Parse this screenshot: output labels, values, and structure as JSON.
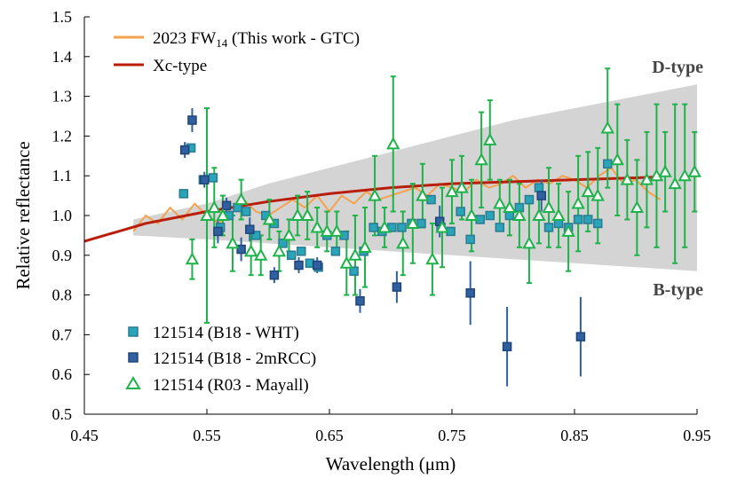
{
  "chart_data": {
    "type": "line",
    "xlabel": "Wavelength (μm)",
    "ylabel": "Relative reflectance",
    "xlim": [
      0.45,
      0.95
    ],
    "ylim": [
      0.5,
      1.5
    ],
    "xticks": [
      "0.45",
      "0.55",
      "0.65",
      "0.75",
      "0.85",
      "0.95"
    ],
    "yticks": [
      "0.5",
      "0.6",
      "0.7",
      "0.8",
      "0.9",
      "1.0",
      "1.1",
      "1.2",
      "1.3",
      "1.4",
      "1.5"
    ],
    "grid": false,
    "legend_top": [
      {
        "name": "2023 FW",
        "subscript": "14",
        "suffix": " (This work - GTC)",
        "color": "#f4a14e"
      },
      {
        "name": "Xc-type",
        "color": "#b81e0a"
      }
    ],
    "legend_bottom": [
      {
        "name": "121514 (B18 - WHT)",
        "color": "#2aa4b8"
      },
      {
        "name": "121514 (B18 - 2mRCC)",
        "color": "#3060a0"
      },
      {
        "name": "121514 (R03 - Mayall)",
        "color": "#1db34a"
      }
    ],
    "region_labels": {
      "upper": "D-type",
      "lower": "B-type"
    },
    "envelope": {
      "x": [
        0.49,
        0.55,
        0.6,
        0.65,
        0.7,
        0.75,
        0.8,
        0.85,
        0.9,
        0.95
      ],
      "upper": [
        0.99,
        1.03,
        1.08,
        1.12,
        1.16,
        1.2,
        1.24,
        1.27,
        1.3,
        1.33
      ],
      "lower": [
        0.95,
        0.94,
        0.93,
        0.92,
        0.91,
        0.9,
        0.89,
        0.88,
        0.87,
        0.86
      ],
      "color": "#d4d4d4"
    },
    "series": [
      {
        "name": "Xc-type",
        "color": "#b81e0a",
        "x": [
          0.45,
          0.5,
          0.55,
          0.6,
          0.65,
          0.7,
          0.75,
          0.8,
          0.85,
          0.9,
          0.92
        ],
        "y": [
          0.935,
          0.98,
          1.01,
          1.035,
          1.055,
          1.07,
          1.08,
          1.085,
          1.09,
          1.095,
          1.097
        ]
      },
      {
        "name": "2023 FW14 (This work - GTC)",
        "color": "#f4a14e",
        "x": [
          0.49,
          0.5,
          0.51,
          0.52,
          0.53,
          0.54,
          0.55,
          0.56,
          0.57,
          0.58,
          0.59,
          0.6,
          0.61,
          0.62,
          0.63,
          0.64,
          0.65,
          0.66,
          0.67,
          0.68,
          0.69,
          0.7,
          0.71,
          0.72,
          0.73,
          0.74,
          0.75,
          0.76,
          0.77,
          0.78,
          0.79,
          0.8,
          0.81,
          0.82,
          0.83,
          0.84,
          0.85,
          0.86,
          0.87,
          0.88,
          0.89,
          0.9,
          0.91,
          0.92
        ],
        "y": [
          0.96,
          1.0,
          0.98,
          1.02,
          0.99,
          1.03,
          1.0,
          0.98,
          1.02,
          1.04,
          1.01,
          1.0,
          1.02,
          1.04,
          1.02,
          1.05,
          1.01,
          1.05,
          1.03,
          1.06,
          1.04,
          1.05,
          1.06,
          1.07,
          1.05,
          1.08,
          1.07,
          1.06,
          1.09,
          1.07,
          1.08,
          1.1,
          1.07,
          1.09,
          1.08,
          1.1,
          1.09,
          1.07,
          1.1,
          1.12,
          1.08,
          1.09,
          1.06,
          1.04
        ]
      },
      {
        "name": "121514 (B18 - WHT)",
        "marker": "square",
        "color": "#2aa4b8",
        "x": [
          0.531,
          0.537,
          0.547,
          0.555,
          0.561,
          0.568,
          0.575,
          0.582,
          0.59,
          0.598,
          0.605,
          0.612,
          0.619,
          0.627,
          0.634,
          0.641,
          0.648,
          0.655,
          0.662,
          0.67,
          0.678,
          0.686,
          0.693,
          0.701,
          0.709,
          0.717,
          0.725,
          0.733,
          0.741,
          0.749,
          0.757,
          0.765,
          0.773,
          0.781,
          0.789,
          0.797,
          0.805,
          0.813,
          0.821,
          0.829,
          0.837,
          0.845,
          0.853,
          0.861,
          0.869,
          0.877
        ],
        "y": [
          1.055,
          1.17,
          1.09,
          1.095,
          0.97,
          1.0,
          1.02,
          1.01,
          0.95,
          1.0,
          0.98,
          0.93,
          0.9,
          0.91,
          0.88,
          0.87,
          0.95,
          0.91,
          0.95,
          0.86,
          0.91,
          0.97,
          0.96,
          0.97,
          0.97,
          0.98,
          0.98,
          1.04,
          0.97,
          0.96,
          1.01,
          0.94,
          0.99,
          1.0,
          0.97,
          1.0,
          1.02,
          1.04,
          1.07,
          0.97,
          0.98,
          0.97,
          0.99,
          0.99,
          0.98,
          1.13
        ]
      },
      {
        "name": "121514 (B18 - 2mRCC)",
        "marker": "square",
        "color": "#3060a0",
        "x": [
          0.532,
          0.538,
          0.548,
          0.559,
          0.566,
          0.578,
          0.585,
          0.605,
          0.625,
          0.64,
          0.675,
          0.705,
          0.74,
          0.765,
          0.795,
          0.823,
          0.855
        ],
        "y": [
          1.165,
          1.24,
          1.09,
          0.96,
          1.025,
          0.915,
          0.965,
          0.85,
          0.875,
          0.875,
          0.785,
          0.82,
          0.985,
          0.805,
          0.67,
          1.05,
          0.695
        ],
        "err": [
          0.02,
          0.03,
          0.02,
          0.03,
          0.02,
          0.03,
          0.03,
          0.02,
          0.02,
          0.02,
          0.03,
          0.04,
          0.04,
          0.08,
          0.1,
          0.04,
          0.1
        ]
      },
      {
        "name": "121514 (R03 - Mayall)",
        "marker": "triangle",
        "color": "#1db34a",
        "x": [
          0.538,
          0.55,
          0.556,
          0.563,
          0.571,
          0.578,
          0.586,
          0.594,
          0.601,
          0.609,
          0.617,
          0.624,
          0.632,
          0.64,
          0.648,
          0.656,
          0.664,
          0.671,
          0.679,
          0.687,
          0.695,
          0.702,
          0.71,
          0.718,
          0.726,
          0.734,
          0.742,
          0.75,
          0.758,
          0.766,
          0.774,
          0.781,
          0.789,
          0.797,
          0.805,
          0.813,
          0.821,
          0.829,
          0.837,
          0.845,
          0.853,
          0.861,
          0.869,
          0.877,
          0.885,
          0.893,
          0.901,
          0.909,
          0.917,
          0.924,
          0.932,
          0.94,
          0.948
        ],
        "y": [
          0.89,
          1.0,
          1.02,
          1.0,
          0.93,
          1.04,
          0.91,
          0.9,
          0.99,
          0.91,
          0.95,
          1.0,
          1.0,
          0.97,
          0.96,
          0.96,
          0.88,
          0.9,
          0.92,
          1.05,
          0.97,
          1.18,
          0.93,
          0.98,
          1.05,
          0.89,
          0.97,
          1.06,
          1.07,
          1.0,
          1.14,
          1.19,
          1.03,
          1.02,
          1.0,
          0.93,
          1.0,
          1.02,
          1.0,
          0.96,
          1.03,
          1.06,
          1.05,
          1.22,
          1.14,
          1.09,
          1.02,
          1.09,
          1.1,
          1.11,
          1.08,
          1.1,
          1.11
        ],
        "err": [
          0.05,
          0.27,
          0.1,
          0.05,
          0.07,
          0.05,
          0.06,
          0.05,
          0.05,
          0.05,
          0.04,
          0.05,
          0.06,
          0.05,
          0.05,
          0.05,
          0.08,
          0.1,
          0.1,
          0.1,
          0.05,
          0.17,
          0.08,
          0.1,
          0.08,
          0.09,
          0.1,
          0.08,
          0.08,
          0.09,
          0.12,
          0.1,
          0.06,
          0.07,
          0.08,
          0.1,
          0.07,
          0.1,
          0.08,
          0.1,
          0.12,
          0.1,
          0.12,
          0.15,
          0.14,
          0.1,
          0.12,
          0.12,
          0.18,
          0.1,
          0.2,
          0.18,
          0.1
        ]
      }
    ]
  }
}
